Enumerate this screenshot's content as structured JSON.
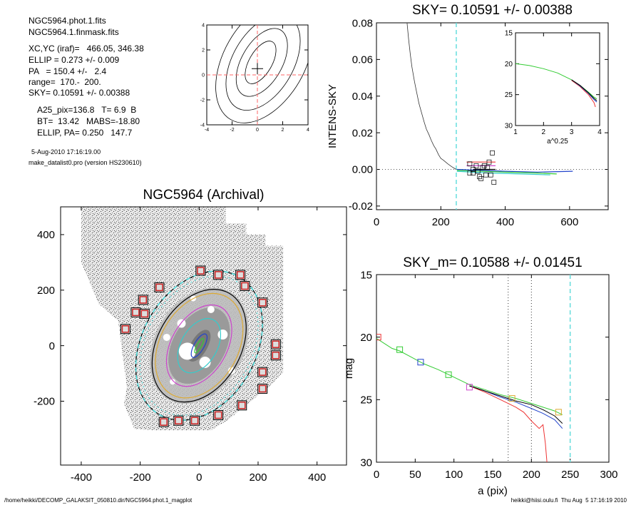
{
  "info": {
    "lines": [
      "NGC5964.phot.1.fits",
      "NGC5964.1.finmask.fits",
      "XC,YC (iraf)=   466.05, 346.38",
      "ELLIP = 0.273 +/- 0.009",
      "PA   = 150.4 +/-   2.4",
      "range=  170.-  200.",
      "SKY= 0.10591 +/- 0.00388",
      "A25_pix=136.8   T= 6.9  B",
      "BT=  13.42   MABS=-18.80",
      "ELLIP, PA= 0.250   147.7"
    ],
    "date": "5-Aug-2010 17:16:19.00",
    "program": "make_datalist0.pro (version HS230610)"
  },
  "footer": {
    "left": "/home/heikki/DECOMP_GALAKSIT_050810.dir/NGC5964.phot.1_magplot",
    "right": "heikki@hiisi.oulu.fi  Thu Aug  5 17:16:19 2010"
  },
  "chart_data": [
    {
      "type": "line",
      "panel": "contour-thumbnail",
      "title": "",
      "xlim": [
        -4,
        4
      ],
      "ylim": [
        -4,
        4
      ],
      "xticks": [
        "-4",
        "-2",
        "0",
        "2",
        "4"
      ],
      "yticks": [
        "-4",
        "-2",
        "0",
        "2",
        "4"
      ],
      "contours": [
        {
          "cx": 0.25,
          "cy": 1.0,
          "rx": 0.9,
          "ry": 1.9,
          "angle": 30
        },
        {
          "cx": 0.35,
          "cy": 1.0,
          "rx": 1.6,
          "ry": 3.0,
          "angle": 30
        },
        {
          "cx": 0.45,
          "cy": 1.0,
          "rx": 2.4,
          "ry": 4.2,
          "angle": 30
        },
        {
          "cx": 0.55,
          "cy": 1.1,
          "rx": 3.2,
          "ry": 5.4,
          "angle": 30
        }
      ],
      "center": [
        0,
        0.5
      ],
      "dash_color": "#ff6666"
    },
    {
      "type": "line",
      "panel": "sky-profile",
      "title": "SKY= 0.10591 +/- 0.00388",
      "xlabel": "",
      "ylabel": "INTENS-SKY",
      "xlim": [
        0,
        720
      ],
      "ylim": [
        -0.022,
        0.08
      ],
      "xticks": [
        "0",
        "200",
        "400",
        "600"
      ],
      "yticks": [
        "-0.02",
        "0.00",
        "0.02",
        "0.04",
        "0.06",
        "0.08"
      ],
      "vline_x": 248,
      "vline_color": "#66dddd",
      "profile": {
        "x": [
          95,
          100,
          105,
          110,
          118,
          125,
          132,
          140,
          148,
          155,
          163,
          170,
          178,
          185,
          193,
          200,
          208,
          215,
          222,
          230,
          238,
          248
        ],
        "y": [
          0.08,
          0.071,
          0.063,
          0.056,
          0.048,
          0.042,
          0.036,
          0.031,
          0.026,
          0.022,
          0.019,
          0.016,
          0.013,
          0.011,
          0.008,
          0.006,
          0.005,
          0.004,
          0.003,
          0.002,
          0.001,
          0.0
        ]
      },
      "sky_squares": {
        "x": [
          290,
          300,
          310,
          320,
          330,
          340,
          350,
          360,
          300,
          315,
          335,
          355,
          290,
          325,
          345,
          365
        ],
        "y": [
          0.003,
          -0.002,
          0.002,
          -0.004,
          0.001,
          -0.003,
          0.004,
          0.009,
          0.0,
          -0.001,
          0.002,
          -0.003,
          -0.002,
          -0.005,
          0.001,
          -0.007
        ]
      },
      "flat_lines": [
        {
          "color": "#2244cc",
          "x": [
            250,
            400,
            500,
            610
          ],
          "y": [
            0.0,
            -0.001,
            -0.0015,
            -0.001
          ]
        },
        {
          "color": "#33cc33",
          "x": [
            250,
            400,
            500,
            560
          ],
          "y": [
            -0.0005,
            -0.0015,
            -0.002,
            -0.0025
          ]
        },
        {
          "color": "#33cccc",
          "x": [
            250,
            350,
            450,
            540
          ],
          "y": [
            -0.001,
            -0.002,
            -0.0025,
            -0.003
          ]
        },
        {
          "color": "#cc44cc",
          "x": [
            280,
            330,
            370
          ],
          "y": [
            0.002,
            0.002,
            0.002
          ]
        },
        {
          "color": "#ee3333",
          "x": [
            280,
            330,
            370
          ],
          "y": [
            0.004,
            0.004,
            0.004
          ]
        },
        {
          "color": "#000000",
          "x": [
            300,
            330,
            370
          ],
          "y": [
            0.0,
            0.0,
            0.0
          ]
        }
      ],
      "inset": {
        "xlabel": "a^0.25",
        "xlim": [
          1,
          4
        ],
        "ylim": [
          15,
          30
        ],
        "xticks": [
          "1",
          "2",
          "3",
          "4"
        ],
        "yticks": [
          "15",
          "20",
          "25",
          "30"
        ],
        "series": [
          {
            "color": "#33cc33",
            "x": [
              1.0,
              1.5,
              2.0,
              2.5,
              3.0,
              3.3,
              3.6,
              3.8,
              3.9
            ],
            "y": [
              20.0,
              20.3,
              20.8,
              21.5,
              22.6,
              23.5,
              24.6,
              25.4,
              25.7
            ]
          },
          {
            "color": "#ee3333",
            "x": [
              3.0,
              3.3,
              3.6,
              3.8,
              3.85
            ],
            "y": [
              22.7,
              23.7,
              25.0,
              26.3,
              27.0
            ]
          },
          {
            "color": "#2244cc",
            "x": [
              3.0,
              3.3,
              3.6,
              3.8,
              3.9
            ],
            "y": [
              22.6,
              23.6,
              24.8,
              25.8,
              26.2
            ]
          },
          {
            "color": "#000000",
            "x": [
              3.0,
              3.3,
              3.6,
              3.8,
              3.9
            ],
            "y": [
              22.6,
              23.5,
              24.7,
              25.6,
              26.0
            ]
          }
        ]
      }
    },
    {
      "type": "scatter",
      "panel": "galaxy-image",
      "title": "NGC5964 (Archival)",
      "xlim": [
        -470,
        500
      ],
      "ylim": [
        -430,
        500
      ],
      "xticks": [
        "-400",
        "-200",
        "0",
        "200",
        "400"
      ],
      "yticks": [
        "-200",
        "0",
        "200",
        "400"
      ],
      "isophotes": [
        {
          "color": "#000000",
          "a": 205,
          "b": 150,
          "angle": -60
        },
        {
          "color": "#ddaa33",
          "a": 190,
          "b": 140,
          "angle": -60
        },
        {
          "color": "#cc44cc",
          "a": 150,
          "b": 100,
          "angle": -60
        },
        {
          "color": "#33cccc",
          "a": 100,
          "b": 65,
          "angle": -60
        },
        {
          "color": "#2244cc",
          "a": 45,
          "b": 18,
          "angle": -60
        },
        {
          "color": "#33cc33",
          "a": 28,
          "b": 8,
          "angle": -60
        }
      ],
      "sky_ellipse": {
        "a": 270,
        "b": 205,
        "angle": -60
      },
      "sky_boxes": {
        "x": [
          5,
          65,
          140,
          155,
          215,
          260,
          260,
          215,
          215,
          145,
          65,
          -15,
          -70,
          -135,
          -190,
          -215,
          -120,
          -185,
          -250
        ],
        "y": [
          270,
          255,
          255,
          215,
          155,
          5,
          -35,
          -95,
          -155,
          -215,
          -250,
          -270,
          -270,
          210,
          165,
          120,
          -275,
          115,
          60
        ]
      }
    },
    {
      "type": "line",
      "panel": "mag-profile",
      "title": "SKY_m=  0.10588 +/- 0.01451",
      "xlabel": "a (pix)",
      "ylabel": "mag",
      "xlim": [
        0,
        300
      ],
      "ylim": [
        15,
        30
      ],
      "xticks": [
        "0",
        "50",
        "100",
        "150",
        "200",
        "250",
        "300"
      ],
      "yticks": [
        "15",
        "20",
        "25",
        "30"
      ],
      "vlines_dotted": [
        170,
        200
      ],
      "vline_dashed": 250,
      "series": [
        {
          "color": "#33cc33",
          "x": [
            0,
            10,
            20,
            30,
            45,
            60,
            80,
            100,
            120,
            140,
            160,
            180,
            200,
            215,
            230,
            240
          ],
          "y": [
            20.1,
            20.5,
            20.9,
            21.1,
            21.6,
            22.1,
            22.6,
            23.2,
            23.8,
            24.2,
            24.6,
            24.9,
            25.3,
            25.6,
            25.9,
            26.2
          ]
        },
        {
          "color": "#2244cc",
          "x": [
            120,
            140,
            160,
            180,
            200,
            215,
            230,
            240
          ],
          "y": [
            23.9,
            24.3,
            24.8,
            25.2,
            25.7,
            26.1,
            26.6,
            27.3
          ]
        },
        {
          "color": "#ee3333",
          "x": [
            120,
            140,
            160,
            180,
            190,
            200,
            210,
            215,
            218,
            220
          ],
          "y": [
            23.9,
            24.4,
            25.0,
            25.6,
            26.0,
            26.7,
            27.3,
            27.0,
            28.5,
            30.0
          ]
        },
        {
          "color": "#000000",
          "x": [
            120,
            140,
            160,
            180,
            200,
            215,
            230,
            240
          ],
          "y": [
            23.9,
            24.3,
            24.7,
            25.1,
            25.4,
            25.8,
            26.3,
            26.9
          ]
        }
      ],
      "squares": [
        {
          "color": "#ee3333",
          "x": 2,
          "y": 20.0
        },
        {
          "color": "#33cc33",
          "x": 30,
          "y": 21.0
        },
        {
          "color": "#2244cc",
          "x": 57,
          "y": 22.0
        },
        {
          "color": "#33cc33",
          "x": 93,
          "y": 23.0
        },
        {
          "color": "#cc44cc",
          "x": 120,
          "y": 24.0
        },
        {
          "color": "#ddaa33",
          "x": 175,
          "y": 24.9
        },
        {
          "color": "#ddaa33",
          "x": 235,
          "y": 26.0
        }
      ]
    }
  ]
}
